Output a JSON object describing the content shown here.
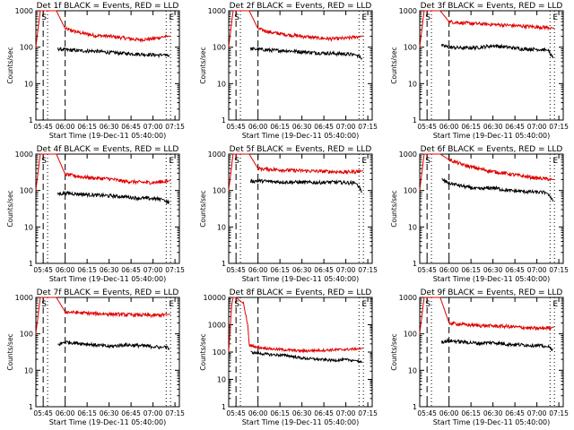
{
  "figure": {
    "colors": {
      "events": "#000000",
      "lld": "#e00000",
      "axis": "#000000",
      "background": "#ffffff"
    }
  },
  "chart_data": [
    {
      "type": "line",
      "title": "Det 1f BLACK = Events, RED = LLD",
      "xlabel": "Start Time (19-Dec-11 05:40:00)",
      "ylabel": "Counts/sec",
      "yscale": "log",
      "xtick_labels": [
        "05:45",
        "06:00",
        "06:15",
        "06:30",
        "06:45",
        "07:00",
        "07:15"
      ],
      "ytick_labels": [
        "1",
        "10",
        "100",
        "1000"
      ],
      "ylim": [
        1,
        1000
      ],
      "xlim_minutes_from_start": [
        0,
        98
      ],
      "markers": [
        {
          "label": "S",
          "at": "05:45"
        },
        {
          "label": "E",
          "at": "07:12"
        }
      ],
      "dashed_lines_at": [
        "05:45",
        "06:00"
      ],
      "dotted_lines_at": [
        "05:48",
        "07:09",
        "07:12"
      ],
      "series": [
        {
          "color": "red",
          "x_minutes": [
            0,
            3,
            5,
            14,
            20,
            30,
            40,
            50,
            60,
            70,
            80,
            86,
            90,
            92
          ],
          "values": [
            100,
            1000,
            1000,
            1000,
            320,
            250,
            210,
            200,
            180,
            160,
            170,
            190,
            200,
            200
          ]
        },
        {
          "color": "black",
          "x_minutes": [
            15,
            20,
            30,
            40,
            50,
            60,
            70,
            80,
            86,
            88,
            91
          ],
          "values": [
            90,
            85,
            80,
            78,
            72,
            68,
            65,
            62,
            60,
            65,
            55
          ]
        }
      ]
    },
    {
      "type": "line",
      "title": "Det 2f BLACK = Events, RED = LLD",
      "xlabel": "Start Time (19-Dec-11 05:40:00)",
      "ylabel": "Counts/sec",
      "yscale": "log",
      "xtick_labels": [
        "05:45",
        "06:00",
        "06:15",
        "06:30",
        "06:45",
        "07:00",
        "07:15"
      ],
      "ytick_labels": [
        "1",
        "10",
        "100",
        "1000"
      ],
      "ylim": [
        1,
        1000
      ],
      "xlim_minutes_from_start": [
        0,
        98
      ],
      "markers": [
        {
          "label": "S",
          "at": "05:45"
        },
        {
          "label": "E",
          "at": "07:12"
        }
      ],
      "dashed_lines_at": [
        "05:45",
        "06:00"
      ],
      "dotted_lines_at": [
        "05:48",
        "07:09",
        "07:12"
      ],
      "series": [
        {
          "color": "red",
          "x_minutes": [
            0,
            3,
            5,
            14,
            20,
            30,
            40,
            50,
            60,
            70,
            80,
            86,
            90,
            92
          ],
          "values": [
            100,
            1000,
            1000,
            1000,
            320,
            250,
            220,
            200,
            180,
            170,
            175,
            190,
            200,
            205
          ]
        },
        {
          "color": "black",
          "x_minutes": [
            15,
            20,
            30,
            40,
            50,
            60,
            70,
            80,
            86,
            88,
            91
          ],
          "values": [
            90,
            88,
            82,
            80,
            75,
            70,
            68,
            65,
            62,
            60,
            50
          ]
        }
      ]
    },
    {
      "type": "line",
      "title": "Det 3f BLACK = Events, RED = LLD",
      "xlabel": "Start Time (19-Dec-11 05:40:00)",
      "ylabel": "Counts/sec",
      "yscale": "log",
      "xtick_labels": [
        "05:45",
        "06:00",
        "06:15",
        "06:30",
        "06:45",
        "07:00",
        "07:15"
      ],
      "ytick_labels": [
        "1",
        "10",
        "100",
        "1000"
      ],
      "ylim": [
        1,
        1000
      ],
      "xlim_minutes_from_start": [
        0,
        98
      ],
      "markers": [
        {
          "label": "S",
          "at": "05:45"
        },
        {
          "label": "E",
          "at": "07:12"
        }
      ],
      "dashed_lines_at": [
        "05:45",
        "06:00"
      ],
      "dotted_lines_at": [
        "05:48",
        "07:09",
        "07:12"
      ],
      "series": [
        {
          "color": "red",
          "x_minutes": [
            0,
            3,
            5,
            14,
            20,
            30,
            40,
            50,
            60,
            70,
            80,
            86,
            90,
            92
          ],
          "values": [
            100,
            1000,
            1000,
            1000,
            500,
            460,
            440,
            420,
            400,
            380,
            360,
            350,
            340,
            330
          ]
        },
        {
          "color": "black",
          "x_minutes": [
            15,
            20,
            30,
            40,
            50,
            60,
            70,
            80,
            86,
            88,
            91
          ],
          "values": [
            110,
            100,
            95,
            98,
            110,
            100,
            90,
            88,
            85,
            80,
            50
          ]
        }
      ]
    },
    {
      "type": "line",
      "title": "Det 4f BLACK = Events, RED = LLD",
      "xlabel": "Start Time (19-Dec-11 05:40:00)",
      "ylabel": "Counts/sec",
      "yscale": "log",
      "xtick_labels": [
        "05:45",
        "06:00",
        "06:15",
        "06:30",
        "06:45",
        "07:00",
        "07:15"
      ],
      "ytick_labels": [
        "1",
        "10",
        "100",
        "1000"
      ],
      "ylim": [
        1,
        1000
      ],
      "xlim_minutes_from_start": [
        0,
        98
      ],
      "markers": [
        {
          "label": "S",
          "at": "05:45"
        },
        {
          "label": "E",
          "at": "07:12"
        }
      ],
      "dashed_lines_at": [
        "05:45",
        "06:00"
      ],
      "dotted_lines_at": [
        "05:48",
        "07:09",
        "07:12"
      ],
      "series": [
        {
          "color": "red",
          "x_minutes": [
            0,
            3,
            5,
            14,
            20,
            30,
            40,
            50,
            60,
            70,
            80,
            86,
            90,
            92
          ],
          "values": [
            100,
            1000,
            1000,
            1000,
            280,
            240,
            220,
            210,
            180,
            170,
            165,
            175,
            180,
            190
          ]
        },
        {
          "color": "black",
          "x_minutes": [
            15,
            20,
            30,
            40,
            50,
            60,
            70,
            80,
            86,
            88,
            91
          ],
          "values": [
            80,
            85,
            80,
            75,
            72,
            68,
            62,
            60,
            58,
            55,
            45
          ]
        }
      ]
    },
    {
      "type": "line",
      "title": "Det 5f BLACK = Events, RED = LLD",
      "xlabel": "Start Time (19-Dec-11 05:40:00)",
      "ylabel": "Counts/sec",
      "yscale": "log",
      "xtick_labels": [
        "05:45",
        "06:00",
        "06:15",
        "06:30",
        "06:45",
        "07:00",
        "07:15"
      ],
      "ytick_labels": [
        "1",
        "10",
        "100",
        "1000"
      ],
      "ylim": [
        1,
        1000
      ],
      "xlim_minutes_from_start": [
        0,
        98
      ],
      "markers": [
        {
          "label": "S",
          "at": "05:45"
        },
        {
          "label": "E",
          "at": "07:12"
        }
      ],
      "dashed_lines_at": [
        "05:45",
        "06:00"
      ],
      "dotted_lines_at": [
        "05:48",
        "07:09",
        "07:12"
      ],
      "series": [
        {
          "color": "red",
          "x_minutes": [
            0,
            3,
            5,
            14,
            20,
            30,
            40,
            50,
            60,
            70,
            80,
            86,
            90,
            92
          ],
          "values": [
            100,
            1000,
            1000,
            1000,
            400,
            380,
            360,
            350,
            340,
            330,
            320,
            330,
            340,
            350
          ]
        },
        {
          "color": "black",
          "x_minutes": [
            15,
            20,
            30,
            40,
            50,
            60,
            70,
            80,
            86,
            88,
            91
          ],
          "values": [
            180,
            185,
            175,
            170,
            168,
            165,
            170,
            165,
            160,
            150,
            90
          ]
        }
      ]
    },
    {
      "type": "line",
      "title": "Det 6f BLACK = Events, RED = LLD",
      "xlabel": "Start Time (19-Dec-11 05:40:00)",
      "ylabel": "Counts/sec",
      "yscale": "log",
      "xtick_labels": [
        "05:45",
        "06:00",
        "06:15",
        "06:30",
        "06:45",
        "07:00",
        "07:15"
      ],
      "ytick_labels": [
        "1",
        "10",
        "100",
        "1000"
      ],
      "ylim": [
        1,
        1000
      ],
      "xlim_minutes_from_start": [
        0,
        98
      ],
      "markers": [
        {
          "label": "S",
          "at": "05:45"
        },
        {
          "label": "E",
          "at": "07:12"
        }
      ],
      "dashed_lines_at": [
        "05:45",
        "06:00"
      ],
      "dotted_lines_at": [
        "05:48",
        "07:09",
        "07:12"
      ],
      "series": [
        {
          "color": "red",
          "x_minutes": [
            0,
            3,
            5,
            14,
            20,
            30,
            40,
            50,
            60,
            70,
            80,
            86,
            90,
            92
          ],
          "values": [
            100,
            1000,
            1000,
            1000,
            700,
            500,
            400,
            330,
            290,
            250,
            220,
            210,
            200,
            200
          ]
        },
        {
          "color": "black",
          "x_minutes": [
            15,
            20,
            30,
            40,
            50,
            60,
            70,
            80,
            86,
            88,
            91
          ],
          "values": [
            200,
            160,
            130,
            110,
            120,
            100,
            95,
            90,
            88,
            80,
            50
          ]
        }
      ]
    },
    {
      "type": "line",
      "title": "Det 7f BLACK = Events, RED = LLD",
      "xlabel": "Start Time (19-Dec-11 05:40:00)",
      "ylabel": "Counts/sec",
      "yscale": "log",
      "xtick_labels": [
        "05:45",
        "06:00",
        "06:15",
        "06:30",
        "06:45",
        "07:00",
        "07:15"
      ],
      "ytick_labels": [
        "1",
        "10",
        "100",
        "1000"
      ],
      "ylim": [
        1,
        1000
      ],
      "xlim_minutes_from_start": [
        0,
        98
      ],
      "markers": [
        {
          "label": "S",
          "at": "05:45"
        },
        {
          "label": "E",
          "at": "07:12"
        }
      ],
      "dashed_lines_at": [
        "05:45",
        "06:00"
      ],
      "dotted_lines_at": [
        "05:48",
        "07:09",
        "07:12"
      ],
      "series": [
        {
          "color": "red",
          "x_minutes": [
            0,
            3,
            5,
            14,
            20,
            30,
            40,
            50,
            60,
            70,
            80,
            86,
            90,
            92
          ],
          "values": [
            100,
            1000,
            1000,
            1000,
            400,
            380,
            360,
            350,
            340,
            330,
            320,
            330,
            340,
            350
          ]
        },
        {
          "color": "black",
          "x_minutes": [
            15,
            20,
            30,
            40,
            50,
            60,
            70,
            80,
            86,
            88,
            91
          ],
          "values": [
            50,
            60,
            55,
            50,
            45,
            50,
            48,
            45,
            42,
            45,
            40
          ]
        }
      ]
    },
    {
      "type": "line",
      "title": "Det 8f BLACK = Events, RED = LLD",
      "xlabel": "Start Time (19-Dec-11 05:40:00)",
      "ylabel": "Counts/sec",
      "yscale": "log",
      "xtick_labels": [
        "05:45",
        "06:00",
        "06:15",
        "06:30",
        "06:45",
        "07:00",
        "07:15"
      ],
      "ytick_labels": [
        "1",
        "10",
        "100",
        "1000",
        "10000"
      ],
      "ylim": [
        1,
        10000
      ],
      "xlim_minutes_from_start": [
        0,
        98
      ],
      "markers": [
        {
          "label": "S",
          "at": "05:45"
        },
        {
          "label": "E",
          "at": "07:12"
        }
      ],
      "dashed_lines_at": [
        "05:45",
        "06:00"
      ],
      "dotted_lines_at": [
        "05:48",
        "07:09",
        "07:12"
      ],
      "series": [
        {
          "color": "red",
          "x_minutes": [
            0,
            2,
            3,
            5,
            10,
            13,
            14,
            20,
            30,
            40,
            50,
            60,
            70,
            80,
            86,
            90,
            92
          ],
          "values": [
            100,
            5000,
            10000,
            10000,
            6000,
            1000,
            180,
            150,
            130,
            120,
            110,
            115,
            120,
            125,
            130,
            135,
            140
          ]
        },
        {
          "color": "black",
          "x_minutes": [
            15,
            20,
            30,
            40,
            50,
            60,
            70,
            80,
            86,
            88,
            91
          ],
          "values": [
            100,
            90,
            80,
            75,
            60,
            55,
            50,
            52,
            50,
            48,
            40
          ]
        }
      ]
    },
    {
      "type": "line",
      "title": "Det 9f BLACK = Events, RED = LLD",
      "xlabel": "Start Time (19-Dec-11 05:40:00)",
      "ylabel": "Counts/sec",
      "yscale": "log",
      "xtick_labels": [
        "05:45",
        "06:00",
        "06:15",
        "06:30",
        "06:45",
        "07:00",
        "07:15"
      ],
      "ytick_labels": [
        "1",
        "10",
        "100",
        "1000"
      ],
      "ylim": [
        1,
        1000
      ],
      "xlim_minutes_from_start": [
        0,
        98
      ],
      "markers": [
        {
          "label": "S",
          "at": "05:45"
        },
        {
          "label": "E",
          "at": "07:12"
        }
      ],
      "dashed_lines_at": [
        "05:45",
        "06:00"
      ],
      "dotted_lines_at": [
        "05:48",
        "07:09",
        "07:12"
      ],
      "series": [
        {
          "color": "red",
          "x_minutes": [
            0,
            3,
            5,
            14,
            20,
            30,
            40,
            50,
            60,
            70,
            80,
            86,
            90,
            92
          ],
          "values": [
            100,
            1000,
            1000,
            1000,
            200,
            180,
            170,
            165,
            160,
            150,
            140,
            145,
            150,
            155
          ]
        },
        {
          "color": "black",
          "x_minutes": [
            15,
            20,
            30,
            40,
            50,
            60,
            70,
            80,
            86,
            88,
            91
          ],
          "values": [
            60,
            65,
            60,
            55,
            58,
            52,
            50,
            48,
            45,
            43,
            38
          ]
        }
      ]
    }
  ]
}
